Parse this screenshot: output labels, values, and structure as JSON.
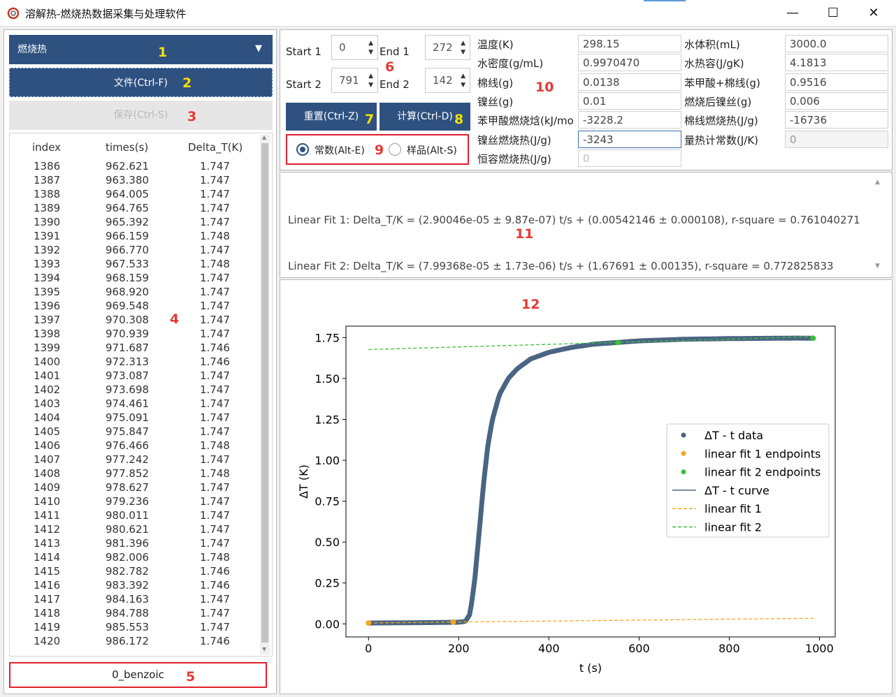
{
  "window": {
    "title": "溶解热-燃烧热数据采集与处理软件",
    "minimize": "—",
    "maximize": "☐",
    "close": "✕"
  },
  "annotations": {
    "a1": "1",
    "a2": "2",
    "a3": "3",
    "a4": "4",
    "a5": "5",
    "a6": "6",
    "a7": "7",
    "a8": "8",
    "a9": "9",
    "a10": "10",
    "a11": "11",
    "a12": "12"
  },
  "left": {
    "mode_value": "燃烧热",
    "file_button": "文件(Ctrl-F)",
    "save_button": "保存(Ctrl-S)",
    "table_headers": [
      "index",
      "times(s)",
      "Delta_T(K)"
    ],
    "rows": [
      [
        "1386",
        "962.621",
        "1.747"
      ],
      [
        "1387",
        "963.380",
        "1.747"
      ],
      [
        "1388",
        "964.005",
        "1.747"
      ],
      [
        "1389",
        "964.765",
        "1.747"
      ],
      [
        "1390",
        "965.392",
        "1.747"
      ],
      [
        "1391",
        "966.159",
        "1.748"
      ],
      [
        "1392",
        "966.770",
        "1.747"
      ],
      [
        "1393",
        "967.533",
        "1.748"
      ],
      [
        "1394",
        "968.159",
        "1.747"
      ],
      [
        "1395",
        "968.920",
        "1.747"
      ],
      [
        "1396",
        "969.548",
        "1.747"
      ],
      [
        "1397",
        "970.308",
        "1.747"
      ],
      [
        "1398",
        "970.939",
        "1.747"
      ],
      [
        "1399",
        "971.687",
        "1.746"
      ],
      [
        "1400",
        "972.313",
        "1.746"
      ],
      [
        "1401",
        "973.087",
        "1.747"
      ],
      [
        "1402",
        "973.698",
        "1.747"
      ],
      [
        "1403",
        "974.461",
        "1.747"
      ],
      [
        "1404",
        "975.091",
        "1.747"
      ],
      [
        "1405",
        "975.847",
        "1.747"
      ],
      [
        "1406",
        "976.466",
        "1.748"
      ],
      [
        "1407",
        "977.242",
        "1.747"
      ],
      [
        "1408",
        "977.852",
        "1.748"
      ],
      [
        "1409",
        "978.627",
        "1.747"
      ],
      [
        "1410",
        "979.236",
        "1.747"
      ],
      [
        "1411",
        "980.011",
        "1.747"
      ],
      [
        "1412",
        "980.621",
        "1.747"
      ],
      [
        "1413",
        "981.396",
        "1.747"
      ],
      [
        "1414",
        "982.006",
        "1.748"
      ],
      [
        "1415",
        "982.782",
        "1.746"
      ],
      [
        "1416",
        "983.392",
        "1.746"
      ],
      [
        "1417",
        "984.163",
        "1.747"
      ],
      [
        "1418",
        "984.788",
        "1.747"
      ],
      [
        "1419",
        "985.553",
        "1.747"
      ],
      [
        "1420",
        "986.172",
        "1.746"
      ]
    ],
    "sample_name": "0_benzoic"
  },
  "range": {
    "start1_label": "Start 1",
    "start1_value": "0",
    "end1_label": "End 1",
    "end1_value": "272",
    "start2_label": "Start 2",
    "start2_value": "791",
    "end2_label": "End 2",
    "end2_value": "142",
    "reset_button": "重置(Ctrl-Z)",
    "calc_button": "计算(Ctrl-D)",
    "radio_constant": "常数(Alt-E)",
    "radio_sample": "样品(Alt-S)"
  },
  "params": [
    {
      "label": "温度(K)",
      "value": "298.15"
    },
    {
      "label": "水体积(mL)",
      "value": "3000.0"
    },
    {
      "label": "水密度(g/mL)",
      "value": "0.9970470"
    },
    {
      "label": "水热容(J/gK)",
      "value": "4.1813"
    },
    {
      "label": "棉线(g)",
      "value": "0.0138"
    },
    {
      "label": "苯甲酸+棉线(g)",
      "value": "0.9516"
    },
    {
      "label": "镍丝(g)",
      "value": "0.01"
    },
    {
      "label": "燃烧后镍丝(g)",
      "value": "0.006"
    },
    {
      "label": "苯甲酸燃烧焓(kJ/mo",
      "value": "-3228.2"
    },
    {
      "label": "棉线燃烧热(J/g)",
      "value": "-16736"
    },
    {
      "label": "镍丝燃烧热(J/g)",
      "value": "-3243"
    },
    {
      "label": "量热计常数(J/K)",
      "value": "0"
    },
    {
      "label": "恒容燃烧热(J/g)",
      "value": "0"
    }
  ],
  "fit_text": [
    "Linear Fit 1: Delta_T/K = (2.90046e-05 ± 9.87e-07) t/s + (0.00542146 ± 0.000108), r-square = 0.761040271",
    "Linear Fit 2: Delta_T/K = (7.99368e-05 ± 1.73e-06) t/s + (1.67691 ± 0.00135), r-square = 0.772825833"
  ],
  "colors": {
    "accent": "#2e5180",
    "annot_red": "#e53935",
    "annot_yellow": "#f5e000",
    "data": "#4a6583",
    "fit1": "#f5a623",
    "fit2": "#3dbf3d"
  },
  "chart_data": {
    "type": "scatter",
    "xlabel": "t (s)",
    "ylabel": "ΔT (K)",
    "xlim": [
      -50,
      1035
    ],
    "ylim": [
      -0.08,
      1.82
    ],
    "xticks": [
      "0",
      "200",
      "400",
      "600",
      "800",
      "1000"
    ],
    "yticks": [
      "0.00",
      "0.25",
      "0.50",
      "0.75",
      "1.00",
      "1.25",
      "1.50",
      "1.75"
    ],
    "legend_position": "center-right",
    "legend": [
      "ΔT - t data",
      "linear fit 1 endpoints",
      "linear fit 2 endpoints",
      "ΔT - t curve",
      "linear fit 1",
      "linear fit 2"
    ],
    "series": [
      {
        "name": "ΔT - t data",
        "x": [
          0,
          50,
          100,
          150,
          200,
          215,
          225,
          235,
          245,
          255,
          265,
          275,
          290,
          310,
          330,
          360,
          400,
          450,
          500,
          550,
          600,
          650,
          700,
          750,
          800,
          850,
          900,
          950,
          986
        ],
        "y": [
          0.005,
          0.006,
          0.007,
          0.008,
          0.01,
          0.015,
          0.06,
          0.25,
          0.55,
          0.85,
          1.1,
          1.25,
          1.4,
          1.5,
          1.56,
          1.62,
          1.66,
          1.69,
          1.71,
          1.72,
          1.73,
          1.735,
          1.74,
          1.742,
          1.744,
          1.745,
          1.746,
          1.747,
          1.746
        ]
      },
      {
        "name": "linear fit 1 endpoints",
        "x": [
          0,
          188
        ],
        "y": [
          0.005,
          0.011
        ]
      },
      {
        "name": "linear fit 2 endpoints",
        "x": [
          553,
          986
        ],
        "y": [
          1.72,
          1.746
        ]
      },
      {
        "name": "linear fit 1",
        "x": [
          0,
          986
        ],
        "y": [
          0.0054,
          0.034
        ]
      },
      {
        "name": "linear fit 2",
        "x": [
          0,
          986
        ],
        "y": [
          1.6769,
          1.7557
        ]
      }
    ]
  }
}
